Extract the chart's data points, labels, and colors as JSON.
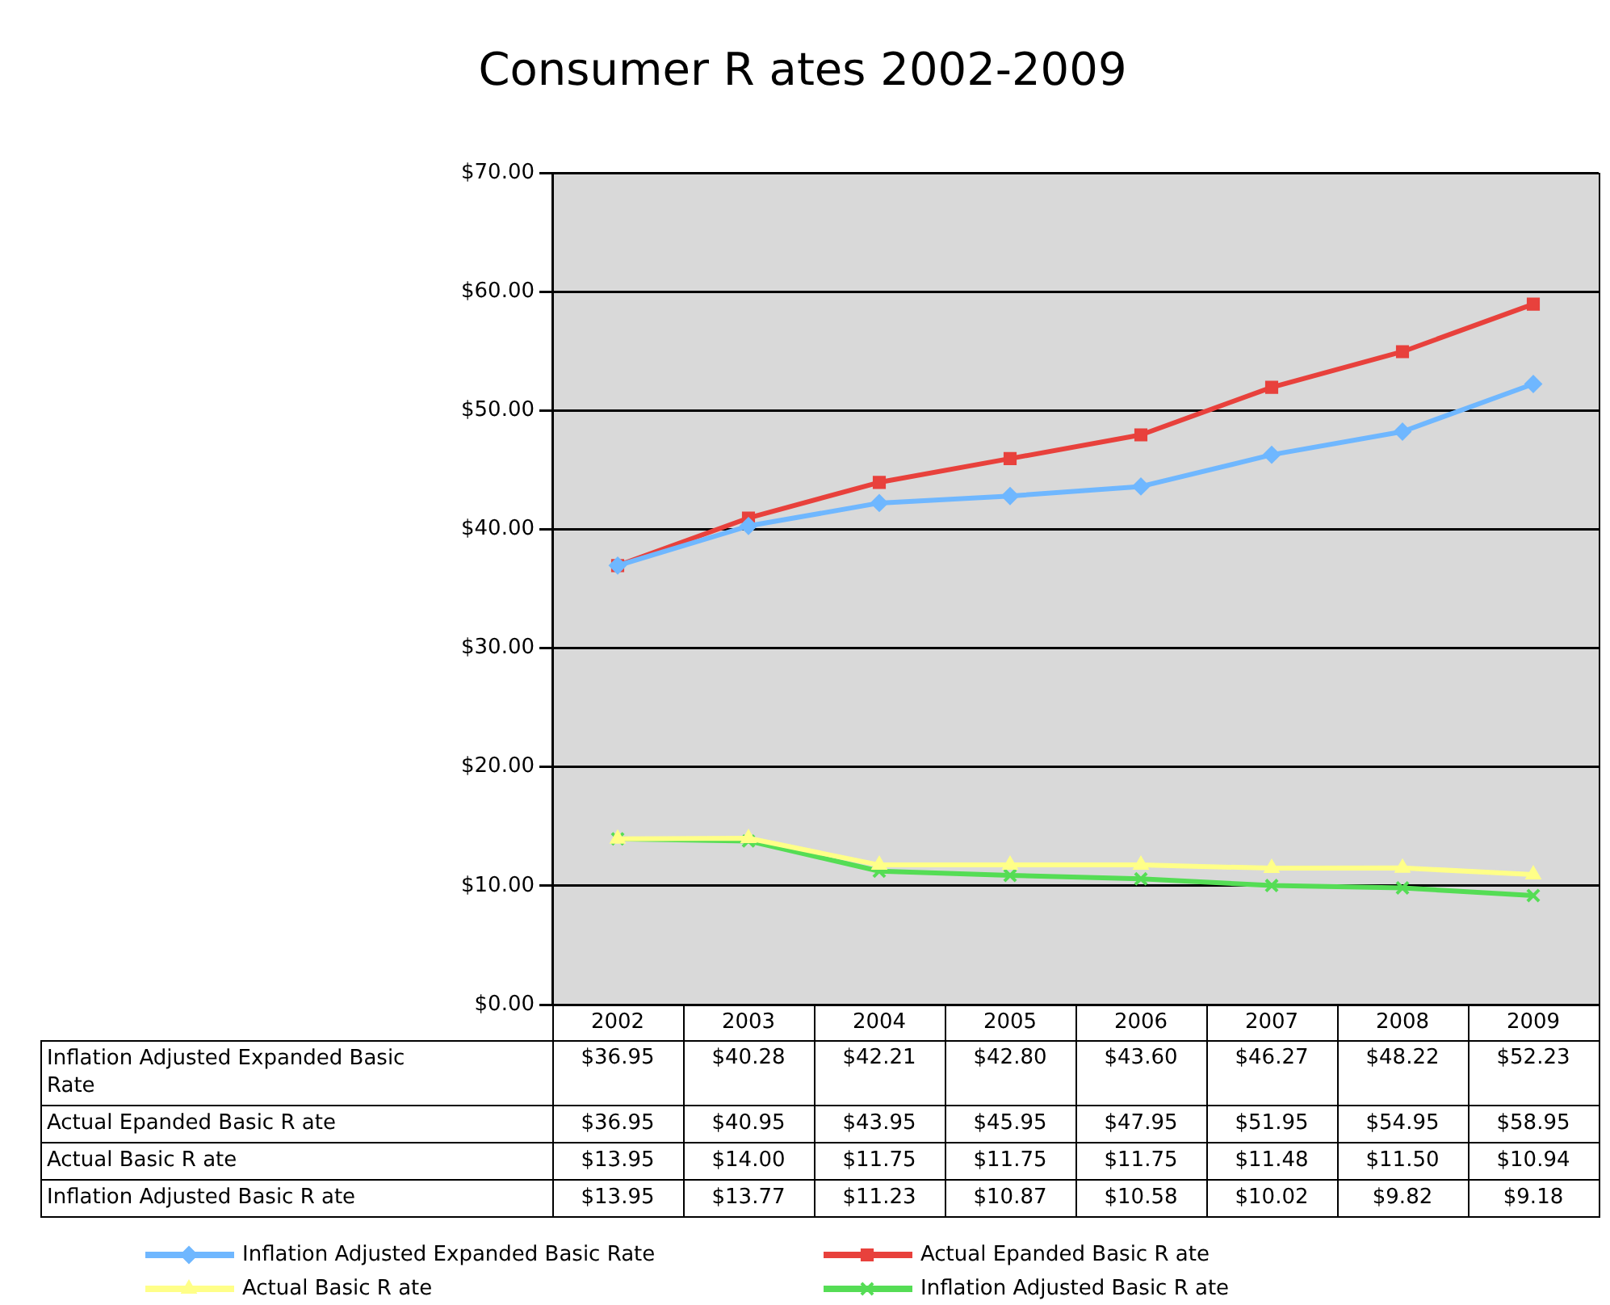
{
  "chart_data": {
    "type": "line",
    "title": "Consumer R ates 2002-2009",
    "categories": [
      "2002",
      "2003",
      "2004",
      "2005",
      "2006",
      "2007",
      "2008",
      "2009"
    ],
    "series": [
      {
        "name": "Inflation Adjusted Expanded Basic Rate",
        "color": "#6fb7ff",
        "marker": "diamond",
        "values": [
          36.95,
          40.28,
          42.21,
          42.8,
          43.6,
          46.27,
          48.22,
          52.23
        ],
        "value_labels": [
          "$36.95",
          "$40.28",
          "$42.21",
          "$42.80",
          "$43.60",
          "$46.27",
          "$48.22",
          "$52.23"
        ]
      },
      {
        "name": "Actual Epanded Basic R ate",
        "color": "#e8413c",
        "marker": "square",
        "values": [
          36.95,
          40.95,
          43.95,
          45.95,
          47.95,
          51.95,
          54.95,
          58.95
        ],
        "value_labels": [
          "$36.95",
          "$40.95",
          "$43.95",
          "$45.95",
          "$47.95",
          "$51.95",
          "$54.95",
          "$58.95"
        ]
      },
      {
        "name": "Actual Basic R ate",
        "color": "#ffff88",
        "marker": "triangle",
        "values": [
          13.95,
          14.0,
          11.75,
          11.75,
          11.75,
          11.48,
          11.5,
          10.94
        ],
        "value_labels": [
          "$13.95",
          "$14.00",
          "$11.75",
          "$11.75",
          "$11.75",
          "$11.48",
          "$11.50",
          "$10.94"
        ]
      },
      {
        "name": "Inflation Adjusted Basic R ate",
        "color": "#55dd55",
        "marker": "cross",
        "values": [
          13.95,
          13.77,
          11.23,
          10.87,
          10.58,
          10.02,
          9.82,
          9.18
        ],
        "value_labels": [
          "$13.95",
          "$13.77",
          "$11.23",
          "$10.87",
          "$10.58",
          "$10.02",
          "$9.82",
          "$9.18"
        ]
      }
    ],
    "ylim": [
      0,
      70
    ],
    "yticks": [
      {
        "value": 0,
        "label": "$0.00"
      },
      {
        "value": 10,
        "label": "$10.00"
      },
      {
        "value": 20,
        "label": "$20.00"
      },
      {
        "value": 30,
        "label": "$30.00"
      },
      {
        "value": 40,
        "label": "$40.00"
      },
      {
        "value": 50,
        "label": "$50.00"
      },
      {
        "value": 60,
        "label": "$60.00"
      },
      {
        "value": 70,
        "label": "$70.00"
      }
    ],
    "grid": "y",
    "legend": "bottom",
    "line_style": "solid"
  }
}
